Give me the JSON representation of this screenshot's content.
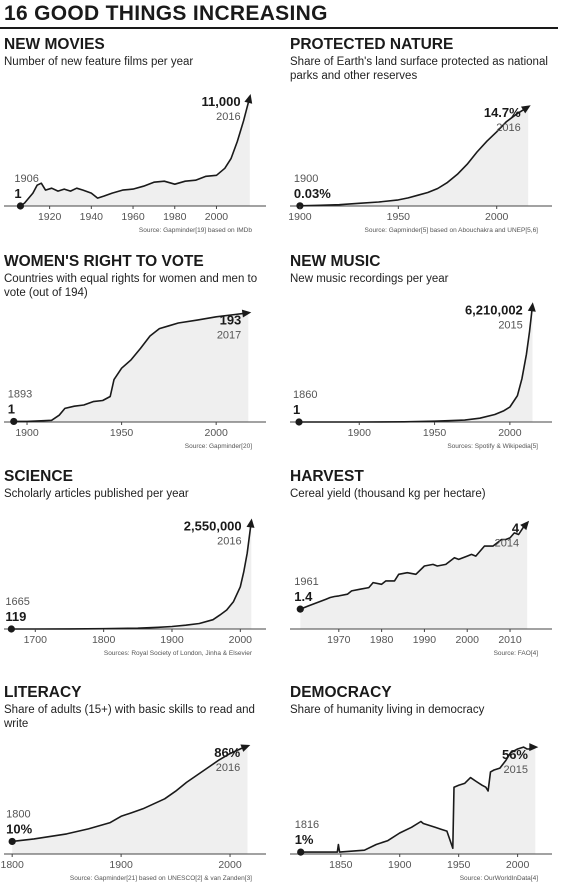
{
  "header": {
    "title": "16 GOOD THINGS INCREASING"
  },
  "colors": {
    "ink": "#1a1a1a",
    "fill": "#efefef",
    "muted": "#555555",
    "axis": "#444444"
  },
  "chart_data": [
    {
      "id": "new-movies",
      "type": "area",
      "title": "NEW MOVIES",
      "subtitle": "Number of new feature films per year",
      "source": "Source: Gapminder[19] based on IMDb",
      "xlim": [
        1901,
        2018
      ],
      "ylim": [
        0,
        11900
      ],
      "xticks": [
        "1920",
        "1940",
        "1960",
        "1980",
        "2000"
      ],
      "start": {
        "year": "1906",
        "value": "1"
      },
      "end": {
        "year": "2016",
        "value": "11,000"
      },
      "points": [
        [
          1906,
          1
        ],
        [
          1908,
          300
        ],
        [
          1912,
          1300
        ],
        [
          1914,
          2100
        ],
        [
          1916,
          2300
        ],
        [
          1918,
          1600
        ],
        [
          1921,
          1800
        ],
        [
          1924,
          1500
        ],
        [
          1927,
          1700
        ],
        [
          1930,
          1500
        ],
        [
          1933,
          1800
        ],
        [
          1936,
          1600
        ],
        [
          1940,
          1300
        ],
        [
          1943,
          800
        ],
        [
          1946,
          1000
        ],
        [
          1950,
          1300
        ],
        [
          1955,
          1600
        ],
        [
          1960,
          1700
        ],
        [
          1965,
          2000
        ],
        [
          1970,
          2400
        ],
        [
          1975,
          2500
        ],
        [
          1980,
          2200
        ],
        [
          1985,
          2500
        ],
        [
          1990,
          2600
        ],
        [
          1995,
          3000
        ],
        [
          2000,
          3100
        ],
        [
          2004,
          3800
        ],
        [
          2007,
          4800
        ],
        [
          2010,
          6500
        ],
        [
          2013,
          8600
        ],
        [
          2016,
          11000
        ]
      ]
    },
    {
      "id": "protected-nature",
      "type": "area",
      "title": "PROTECTED NATURE",
      "subtitle": "Share of Earth's land surface protected as national parks and other reserves",
      "source": "Source: Gapminder[5] based on Abouchakra and UNEP[5,6]",
      "xlim": [
        1898,
        2022
      ],
      "ylim": [
        0,
        16
      ],
      "xticks": [
        "1900",
        "1950",
        "2000"
      ],
      "start": {
        "year": "1900",
        "value": "0.03%"
      },
      "end": {
        "year": "2016",
        "value": "14.7%"
      },
      "points": [
        [
          1900,
          0.03
        ],
        [
          1910,
          0.1
        ],
        [
          1920,
          0.2
        ],
        [
          1930,
          0.4
        ],
        [
          1940,
          0.6
        ],
        [
          1950,
          0.9
        ],
        [
          1955,
          1.2
        ],
        [
          1960,
          1.6
        ],
        [
          1965,
          2
        ],
        [
          1970,
          2.6
        ],
        [
          1975,
          3.5
        ],
        [
          1980,
          4.7
        ],
        [
          1985,
          6.2
        ],
        [
          1990,
          8
        ],
        [
          1995,
          9.6
        ],
        [
          2000,
          11
        ],
        [
          2005,
          12.5
        ],
        [
          2010,
          13.6
        ],
        [
          2016,
          14.7
        ]
      ]
    },
    {
      "id": "womens-right-to-vote",
      "type": "area",
      "title": "WOMEN'S RIGHT TO VOTE",
      "subtitle": "Countries with equal rights for women and men to vote (out of 194)",
      "source": "Source: Gapminder[20]",
      "xlim": [
        1891,
        2020
      ],
      "ylim": [
        0,
        205
      ],
      "xticks": [
        "1900",
        "1950",
        "2000"
      ],
      "start": {
        "year": "1893",
        "value": "1"
      },
      "end": {
        "year": "2017",
        "value": "193"
      },
      "points": [
        [
          1893,
          1
        ],
        [
          1900,
          1
        ],
        [
          1906,
          2
        ],
        [
          1913,
          3
        ],
        [
          1917,
          12
        ],
        [
          1920,
          24
        ],
        [
          1925,
          28
        ],
        [
          1930,
          30
        ],
        [
          1935,
          36
        ],
        [
          1940,
          38
        ],
        [
          1944,
          45
        ],
        [
          1946,
          75
        ],
        [
          1950,
          95
        ],
        [
          1955,
          110
        ],
        [
          1960,
          130
        ],
        [
          1965,
          152
        ],
        [
          1970,
          165
        ],
        [
          1975,
          170
        ],
        [
          1980,
          175
        ],
        [
          1990,
          180
        ],
        [
          2000,
          186
        ],
        [
          2010,
          190
        ],
        [
          2017,
          193
        ]
      ]
    },
    {
      "id": "new-music",
      "type": "area",
      "title": "NEW MUSIC",
      "subtitle": "New music recordings per year",
      "source": "Sources: Spotify & Wikipedia[5]",
      "xlim": [
        1858,
        2020
      ],
      "ylim": [
        0,
        6600000
      ],
      "xticks": [
        "1900",
        "1950",
        "2000"
      ],
      "start": {
        "year": "1860",
        "value": "1"
      },
      "end": {
        "year": "2015",
        "value": "6,210,002"
      },
      "points": [
        [
          1860,
          1
        ],
        [
          1900,
          2000
        ],
        [
          1930,
          10000
        ],
        [
          1950,
          40000
        ],
        [
          1970,
          100000
        ],
        [
          1980,
          200000
        ],
        [
          1990,
          400000
        ],
        [
          1996,
          600000
        ],
        [
          2000,
          800000
        ],
        [
          2005,
          1400000
        ],
        [
          2008,
          2300000
        ],
        [
          2011,
          3600000
        ],
        [
          2013,
          4800000
        ],
        [
          2015,
          6210002
        ]
      ]
    },
    {
      "id": "science",
      "type": "area",
      "title": "SCIENCE",
      "subtitle": "Scholarly articles published per year",
      "source": "Sources: Royal Society of London, Jinha & Elsevier",
      "xlim": [
        1663,
        2020
      ],
      "ylim": [
        0,
        2750000
      ],
      "xticks": [
        "1700",
        "1800",
        "1900",
        "2000"
      ],
      "start": {
        "year": "1665",
        "value": "119"
      },
      "end": {
        "year": "2016",
        "value": "2,550,000"
      },
      "points": [
        [
          1665,
          119
        ],
        [
          1700,
          1000
        ],
        [
          1750,
          3000
        ],
        [
          1800,
          8000
        ],
        [
          1850,
          20000
        ],
        [
          1880,
          40000
        ],
        [
          1900,
          60000
        ],
        [
          1920,
          90000
        ],
        [
          1940,
          130000
        ],
        [
          1960,
          220000
        ],
        [
          1970,
          330000
        ],
        [
          1980,
          450000
        ],
        [
          1990,
          650000
        ],
        [
          2000,
          1000000
        ],
        [
          2005,
          1350000
        ],
        [
          2010,
          1800000
        ],
        [
          2016,
          2550000
        ]
      ]
    },
    {
      "id": "harvest",
      "type": "area",
      "title": "HARVEST",
      "subtitle": "Cereal yield (thousand kg per hectare)",
      "source": "Source: FAO[4]",
      "xlim": [
        1960,
        2017
      ],
      "ylim": [
        0.8,
        4.3
      ],
      "xticks": [
        "1970",
        "1980",
        "1990",
        "2000",
        "2010"
      ],
      "start": {
        "year": "1961",
        "value": "1.4"
      },
      "end": {
        "year": "2014",
        "value": "4"
      },
      "points": [
        [
          1961,
          1.4
        ],
        [
          1963,
          1.5
        ],
        [
          1965,
          1.6
        ],
        [
          1967,
          1.7
        ],
        [
          1968,
          1.75
        ],
        [
          1969,
          1.78
        ],
        [
          1970,
          1.8
        ],
        [
          1972,
          1.85
        ],
        [
          1973,
          1.95
        ],
        [
          1975,
          2.0
        ],
        [
          1977,
          2.05
        ],
        [
          1978,
          2.2
        ],
        [
          1980,
          2.15
        ],
        [
          1981,
          2.25
        ],
        [
          1983,
          2.25
        ],
        [
          1984,
          2.45
        ],
        [
          1986,
          2.5
        ],
        [
          1988,
          2.45
        ],
        [
          1990,
          2.7
        ],
        [
          1992,
          2.75
        ],
        [
          1993,
          2.7
        ],
        [
          1995,
          2.75
        ],
        [
          1997,
          2.95
        ],
        [
          1998,
          2.9
        ],
        [
          2000,
          3.0
        ],
        [
          2001,
          3.05
        ],
        [
          2002,
          3.0
        ],
        [
          2004,
          3.3
        ],
        [
          2006,
          3.3
        ],
        [
          2008,
          3.5
        ],
        [
          2009,
          3.5
        ],
        [
          2010,
          3.55
        ],
        [
          2011,
          3.7
        ],
        [
          2012,
          3.65
        ],
        [
          2013,
          3.85
        ],
        [
          2014,
          4.0
        ]
      ]
    },
    {
      "id": "literacy",
      "type": "area",
      "title": "LITERACY",
      "subtitle": "Share of adults (15+) with basic skills to read and write",
      "source": "Source: Gapminder[21] based on UNESCO[2] & van Zanden[3]",
      "xlim": [
        1798,
        2022
      ],
      "ylim": [
        0,
        94
      ],
      "xticks": [
        "1800",
        "1900",
        "2000"
      ],
      "start": {
        "year": "1800",
        "value": "10%"
      },
      "end": {
        "year": "2016",
        "value": "86%"
      },
      "points": [
        [
          1800,
          10
        ],
        [
          1820,
          12
        ],
        [
          1850,
          16
        ],
        [
          1870,
          20
        ],
        [
          1890,
          25
        ],
        [
          1900,
          30
        ],
        [
          1910,
          33
        ],
        [
          1920,
          36
        ],
        [
          1930,
          40
        ],
        [
          1940,
          44
        ],
        [
          1950,
          50
        ],
        [
          1960,
          57
        ],
        [
          1970,
          63
        ],
        [
          1980,
          69
        ],
        [
          1990,
          75
        ],
        [
          2000,
          80
        ],
        [
          2010,
          84
        ],
        [
          2016,
          86
        ]
      ]
    },
    {
      "id": "democracy",
      "type": "area",
      "title": "DEMOCRACY",
      "subtitle": "Share of humanity living in democracy",
      "source": "Source: OurWorldInData[4]",
      "xlim": [
        1812,
        2019
      ],
      "ylim": [
        0,
        66
      ],
      "xticks": [
        "1850",
        "1900",
        "1950",
        "2000"
      ],
      "start": {
        "year": "1816",
        "value": "1%"
      },
      "end": {
        "year": "2015",
        "value": "56%"
      },
      "points": [
        [
          1816,
          1
        ],
        [
          1840,
          1
        ],
        [
          1847,
          1
        ],
        [
          1848,
          5
        ],
        [
          1849,
          1
        ],
        [
          1870,
          2
        ],
        [
          1880,
          5
        ],
        [
          1890,
          7
        ],
        [
          1900,
          11
        ],
        [
          1910,
          14
        ],
        [
          1918,
          17
        ],
        [
          1920,
          16
        ],
        [
          1930,
          14
        ],
        [
          1935,
          13
        ],
        [
          1940,
          12
        ],
        [
          1945,
          3
        ],
        [
          1946,
          35
        ],
        [
          1950,
          36
        ],
        [
          1955,
          37
        ],
        [
          1960,
          40
        ],
        [
          1965,
          38
        ],
        [
          1970,
          36
        ],
        [
          1973,
          35
        ],
        [
          1975,
          33
        ],
        [
          1977,
          43
        ],
        [
          1980,
          44
        ],
        [
          1985,
          45
        ],
        [
          1990,
          49
        ],
        [
          1994,
          53
        ],
        [
          2000,
          55
        ],
        [
          2005,
          56
        ],
        [
          2008,
          55
        ],
        [
          2010,
          55
        ],
        [
          2012,
          56
        ],
        [
          2015,
          56
        ]
      ]
    }
  ]
}
